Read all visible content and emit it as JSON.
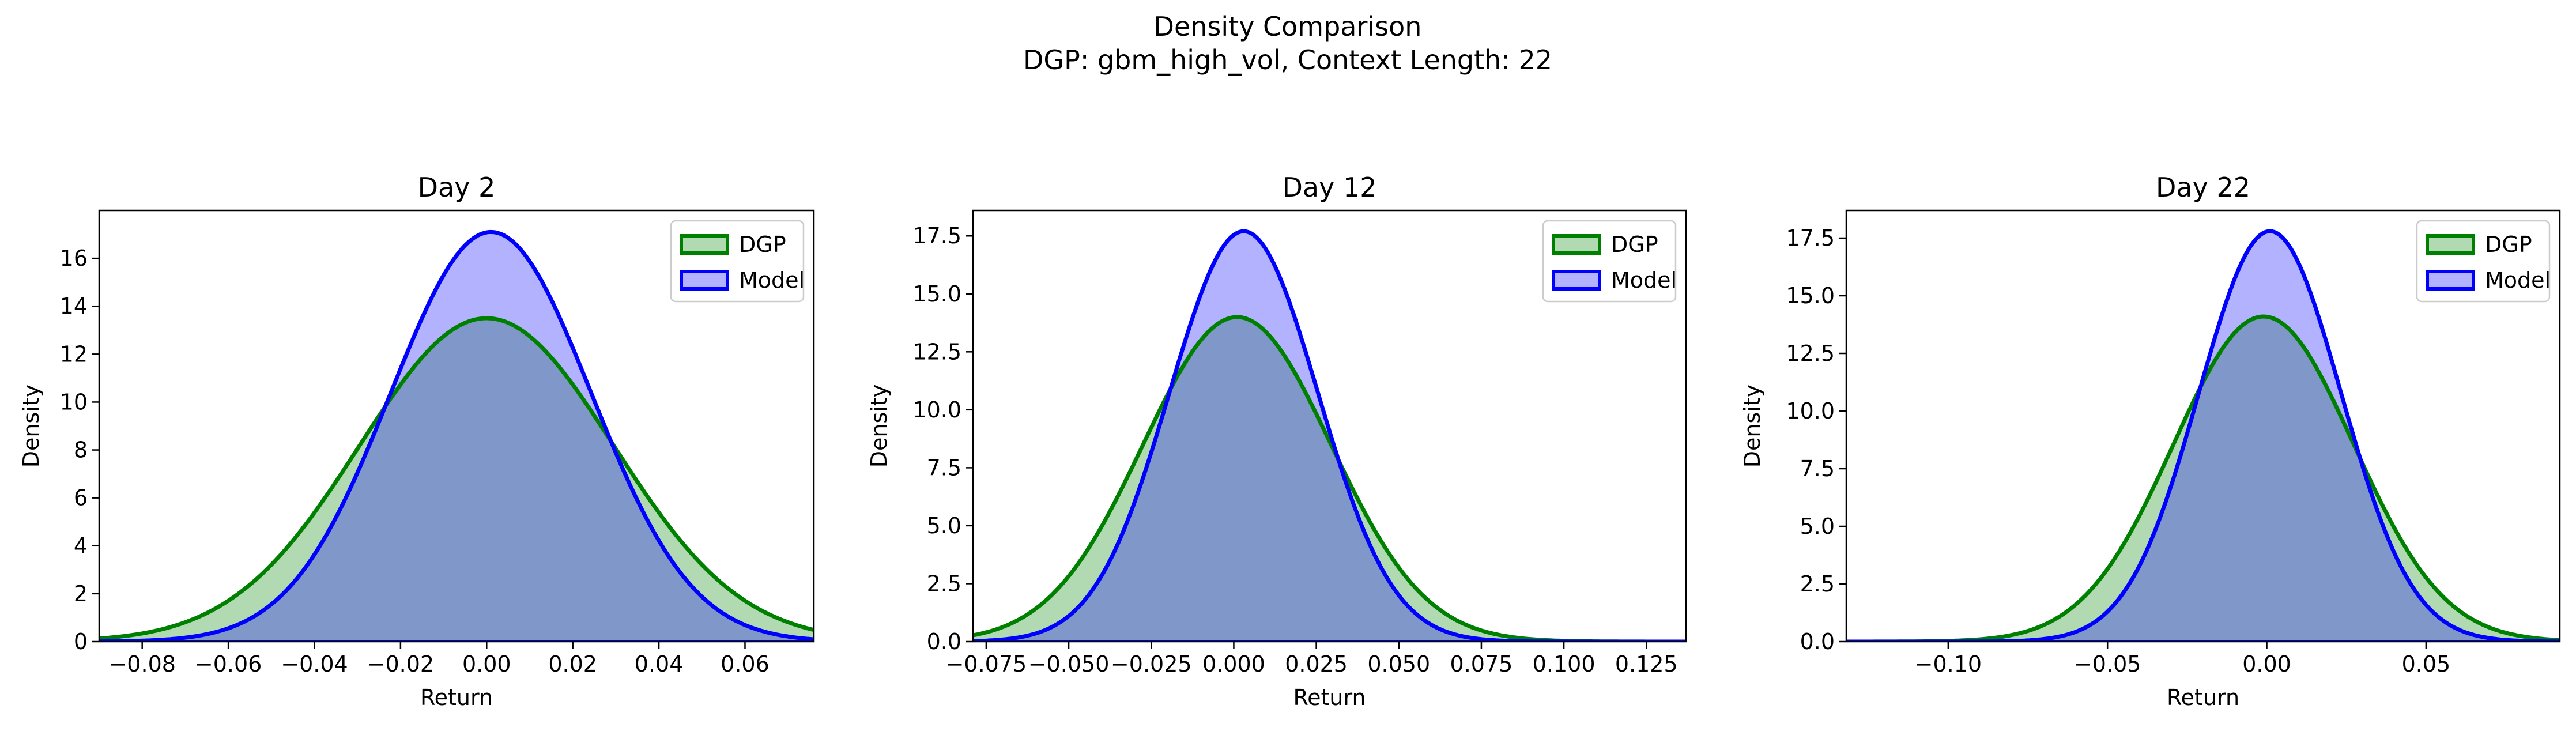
{
  "figure": {
    "title_line1": "Density Comparison",
    "title_line2": "DGP: gbm_high_vol, Context Length: 22"
  },
  "colors": {
    "dgp_line": "#008000",
    "dgp_fill": "#b2dab2",
    "model_line": "#0000ff",
    "model_fill": "#b2b2ff",
    "overlap_fill": "#7f98c9"
  },
  "chart_data": [
    {
      "type": "area",
      "title": "Day 2",
      "xlabel": "Return",
      "ylabel": "Density",
      "xlim": [
        -0.09,
        0.076
      ],
      "ylim": [
        0,
        18
      ],
      "xticks": [
        -0.08,
        -0.06,
        -0.04,
        -0.02,
        0.0,
        0.02,
        0.04,
        0.06
      ],
      "xtick_labels": [
        "−0.08",
        "−0.06",
        "−0.04",
        "−0.02",
        "0.00",
        "0.02",
        "0.04",
        "0.06"
      ],
      "yticks": [
        0,
        2,
        4,
        6,
        8,
        10,
        12,
        14,
        16
      ],
      "ytick_labels": [
        "0",
        "2",
        "4",
        "6",
        "8",
        "10",
        "12",
        "14",
        "16"
      ],
      "legend": {
        "position": "top-right",
        "entries": [
          "DGP",
          "Model"
        ]
      },
      "series": [
        {
          "name": "DGP",
          "mean": 0.0,
          "sd": 0.0295,
          "peak": 13.5
        },
        {
          "name": "Model",
          "mean": 0.001,
          "sd": 0.0233,
          "peak": 17.1
        }
      ]
    },
    {
      "type": "area",
      "title": "Day 12",
      "xlabel": "Return",
      "ylabel": "Density",
      "xlim": [
        -0.079,
        0.137
      ],
      "ylim": [
        0,
        18.6
      ],
      "xticks": [
        -0.075,
        -0.05,
        -0.025,
        0.0,
        0.025,
        0.05,
        0.075,
        0.1,
        0.125
      ],
      "xtick_labels": [
        "−0.075",
        "−0.050",
        "−0.025",
        "0.000",
        "0.025",
        "0.050",
        "0.075",
        "0.100",
        "0.125"
      ],
      "yticks": [
        0,
        2.5,
        5,
        7.5,
        10,
        12.5,
        15,
        17.5
      ],
      "ytick_labels": [
        "0.0",
        "2.5",
        "5.0",
        "7.5",
        "10.0",
        "12.5",
        "15.0",
        "17.5"
      ],
      "legend": {
        "position": "top-right",
        "entries": [
          "DGP",
          "Model"
        ]
      },
      "series": [
        {
          "name": "DGP",
          "mean": 0.001,
          "sd": 0.0285,
          "peak": 14.0
        },
        {
          "name": "Model",
          "mean": 0.003,
          "sd": 0.0225,
          "peak": 17.7
        }
      ]
    },
    {
      "type": "area",
      "title": "Day 22",
      "xlabel": "Return",
      "ylabel": "Density",
      "xlim": [
        -0.132,
        0.092
      ],
      "ylim": [
        0,
        18.7
      ],
      "xticks": [
        -0.1,
        -0.05,
        0.0,
        0.05
      ],
      "xtick_labels": [
        "−0.10",
        "−0.05",
        "0.00",
        "0.05"
      ],
      "yticks": [
        0,
        2.5,
        5,
        7.5,
        10,
        12.5,
        15,
        17.5
      ],
      "ytick_labels": [
        "0.0",
        "2.5",
        "5.0",
        "7.5",
        "10.0",
        "12.5",
        "15.0",
        "17.5"
      ],
      "legend": {
        "position": "top-right",
        "entries": [
          "DGP",
          "Model"
        ]
      },
      "series": [
        {
          "name": "DGP",
          "mean": -0.001,
          "sd": 0.0283,
          "peak": 14.1
        },
        {
          "name": "Model",
          "mean": 0.001,
          "sd": 0.0223,
          "peak": 17.8
        }
      ]
    }
  ]
}
